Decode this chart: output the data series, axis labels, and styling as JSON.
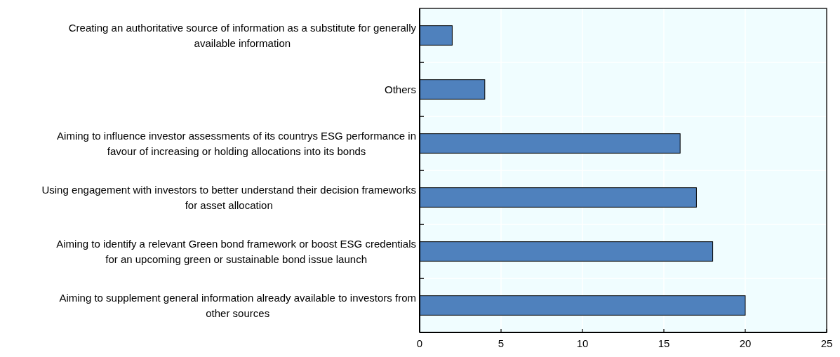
{
  "chart_data": {
    "type": "bar",
    "orientation": "horizontal",
    "categories": [
      "Creating an authoritative source of information as a substitute for generally available information",
      "Others",
      "Aiming to influence investor assessments of its countrys ESG performance in favour of increasing or holding allocations into its bonds",
      "Using engagement with investors to better understand their decision frameworks for asset allocation",
      "Aiming to identify a relevant Green bond framework or boost ESG credentials for an upcoming green or sustainable bond issue launch",
      "Aiming to supplement general information already available to investors from other sources"
    ],
    "values": [
      2,
      4,
      16,
      17,
      18,
      20
    ],
    "color": "#4f81bd",
    "xlim": [
      0,
      25
    ],
    "xticks": [
      0,
      5,
      10,
      15,
      20,
      25
    ],
    "grid": true
  }
}
